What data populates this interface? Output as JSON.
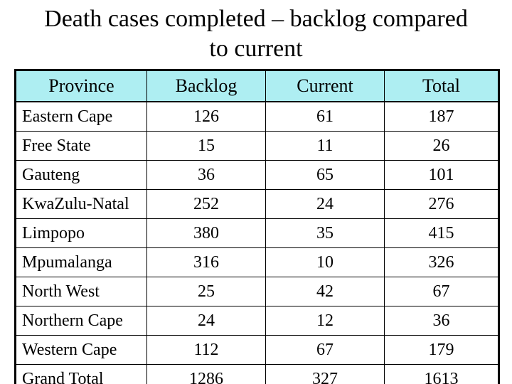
{
  "slide": {
    "title_line1": "Death cases completed – backlog compared",
    "title_line2": "to current"
  },
  "table": {
    "header_bg": "#AEEEF2",
    "border_color": "#000000",
    "columns": [
      "Province",
      "Backlog",
      "Current",
      "Total"
    ],
    "rows": [
      [
        "Eastern Cape",
        "126",
        "61",
        "187"
      ],
      [
        "Free State",
        "15",
        "11",
        "26"
      ],
      [
        "Gauteng",
        "36",
        "65",
        "101"
      ],
      [
        "KwaZulu-Natal",
        "252",
        "24",
        "276"
      ],
      [
        "Limpopo",
        "380",
        "35",
        "415"
      ],
      [
        "Mpumalanga",
        "316",
        "10",
        "326"
      ],
      [
        "North West",
        "25",
        "42",
        "67"
      ],
      [
        "Northern Cape",
        "24",
        "12",
        "36"
      ],
      [
        "Western Cape",
        "112",
        "67",
        "179"
      ],
      [
        "Grand Total",
        "1286",
        "327",
        "1613"
      ]
    ]
  }
}
